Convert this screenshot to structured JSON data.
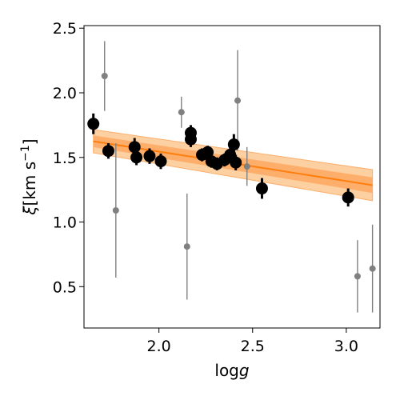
{
  "chart_data": {
    "type": "scatter",
    "xlabel_main": "log",
    "xlabel_italic": "g",
    "ylabel_symbol": "ξ",
    "ylabel_unit": "[km s",
    "ylabel_exp": "−1",
    "ylabel_close": "]",
    "xlim": [
      1.6,
      3.18
    ],
    "ylim": [
      0.18,
      2.52
    ],
    "xticks": [
      2.0,
      2.5,
      3.0
    ],
    "xtick_labels": [
      "2.0",
      "2.5",
      "3.0"
    ],
    "yticks": [
      0.5,
      1.0,
      1.5,
      2.0,
      2.5
    ],
    "ytick_labels": [
      "0.5",
      "1.0",
      "1.5",
      "2.0",
      "2.5"
    ],
    "grid": false,
    "colors": {
      "main": "#000000",
      "outlier": "#808080",
      "fit_line": "#ff7f0e",
      "band_inner": "#fdae6b",
      "band_outer": "#fdd0a2"
    },
    "fit": {
      "x": [
        1.65,
        3.14
      ],
      "y": [
        1.625,
        1.285
      ],
      "inner_band": [
        0.045,
        0.06
      ],
      "outer_band": [
        0.09,
        0.12
      ]
    },
    "series": [
      {
        "role": "main",
        "points": [
          {
            "x": 1.65,
            "y": 1.76,
            "err": 0.08
          },
          {
            "x": 1.73,
            "y": 1.55,
            "err": 0.06
          },
          {
            "x": 1.87,
            "y": 1.58,
            "err": 0.07
          },
          {
            "x": 1.88,
            "y": 1.5,
            "err": 0.06
          },
          {
            "x": 1.95,
            "y": 1.51,
            "err": 0.06
          },
          {
            "x": 2.01,
            "y": 1.47,
            "err": 0.06
          },
          {
            "x": 2.17,
            "y": 1.69,
            "err": 0.06
          },
          {
            "x": 2.17,
            "y": 1.64,
            "err": 0.06
          },
          {
            "x": 2.23,
            "y": 1.52,
            "err": 0.05
          },
          {
            "x": 2.26,
            "y": 1.54,
            "err": 0.05
          },
          {
            "x": 2.28,
            "y": 1.47,
            "err": 0.05
          },
          {
            "x": 2.31,
            "y": 1.45,
            "err": 0.05
          },
          {
            "x": 2.35,
            "y": 1.48,
            "err": 0.05
          },
          {
            "x": 2.38,
            "y": 1.52,
            "err": 0.05
          },
          {
            "x": 2.4,
            "y": 1.6,
            "err": 0.08
          },
          {
            "x": 2.41,
            "y": 1.46,
            "err": 0.06
          },
          {
            "x": 2.55,
            "y": 1.26,
            "err": 0.08
          },
          {
            "x": 3.01,
            "y": 1.19,
            "err": 0.07
          }
        ]
      },
      {
        "role": "outlier",
        "points": [
          {
            "x": 1.71,
            "y": 2.13,
            "err_lo": 0.27,
            "err_hi": 0.27
          },
          {
            "x": 1.77,
            "y": 1.09,
            "err_lo": 0.52,
            "err_hi": 0.52
          },
          {
            "x": 2.12,
            "y": 1.85,
            "err_lo": 0.12,
            "err_hi": 0.12
          },
          {
            "x": 2.15,
            "y": 0.81,
            "err_lo": 0.41,
            "err_hi": 0.41
          },
          {
            "x": 2.42,
            "y": 1.94,
            "err_lo": 0.39,
            "err_hi": 0.39
          },
          {
            "x": 2.47,
            "y": 1.43,
            "err_lo": 0.15,
            "err_hi": 0.15
          },
          {
            "x": 3.06,
            "y": 0.58,
            "err_lo": 0.28,
            "err_hi": 0.28
          },
          {
            "x": 3.14,
            "y": 0.64,
            "err_lo": 0.34,
            "err_hi": 0.34
          }
        ]
      }
    ]
  }
}
